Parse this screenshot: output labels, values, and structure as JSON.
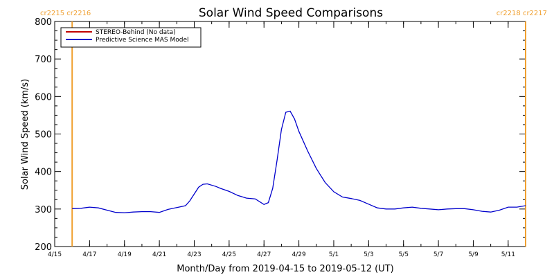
{
  "chart_data": {
    "type": "line",
    "title": "Solar Wind Speed Comparisons",
    "xlabel": "Month/Day from 2019-04-15 to 2019-05-12 (UT)",
    "ylabel": "Solar Wind Speed (km/s)",
    "xlim": [
      "2019-04-15",
      "2019-05-12"
    ],
    "ylim": [
      200,
      800
    ],
    "y_ticks": [
      200,
      300,
      400,
      500,
      600,
      700,
      800
    ],
    "x_ticks": [
      {
        "date": "2019-04-15",
        "label": "4/15"
      },
      {
        "date": "2019-04-17",
        "label": "4/17"
      },
      {
        "date": "2019-04-19",
        "label": "4/19"
      },
      {
        "date": "2019-04-21",
        "label": "4/21"
      },
      {
        "date": "2019-04-23",
        "label": "4/23"
      },
      {
        "date": "2019-04-25",
        "label": "4/25"
      },
      {
        "date": "2019-04-27",
        "label": "4/27"
      },
      {
        "date": "2019-04-29",
        "label": "4/29"
      },
      {
        "date": "2019-05-01",
        "label": "5/1"
      },
      {
        "date": "2019-05-03",
        "label": "5/3"
      },
      {
        "date": "2019-05-05",
        "label": "5/5"
      },
      {
        "date": "2019-05-07",
        "label": "5/7"
      },
      {
        "date": "2019-05-09",
        "label": "5/9"
      },
      {
        "date": "2019-05-11",
        "label": "5/11"
      }
    ],
    "carrington_markers": [
      {
        "label": "cr2215 cr2216",
        "date": "2019-04-16 00:00",
        "side": "left"
      },
      {
        "label": "cr2218 cr2217",
        "date": "2019-05-12 00:00",
        "side": "right"
      }
    ],
    "marker_color": "#f0a030",
    "legend": {
      "position": "top-left",
      "entries": [
        {
          "label": "STEREO-Behind (No data)",
          "color": "#c00000"
        },
        {
          "label": "Predictive Science MAS Model",
          "color": "#0000cc"
        }
      ]
    },
    "series": [
      {
        "name": "Predictive Science MAS Model",
        "color": "#0000cc",
        "points": [
          [
            "2019-04-16 00:00",
            301
          ],
          [
            "2019-04-16 12:00",
            302
          ],
          [
            "2019-04-17 00:00",
            305
          ],
          [
            "2019-04-17 12:00",
            303
          ],
          [
            "2019-04-18 00:00",
            297
          ],
          [
            "2019-04-18 12:00",
            291
          ],
          [
            "2019-04-19 00:00",
            290
          ],
          [
            "2019-04-19 12:00",
            292
          ],
          [
            "2019-04-20 00:00",
            293
          ],
          [
            "2019-04-20 12:00",
            293
          ],
          [
            "2019-04-21 00:00",
            291
          ],
          [
            "2019-04-21 12:00",
            299
          ],
          [
            "2019-04-22 00:00",
            304
          ],
          [
            "2019-04-22 12:00",
            309
          ],
          [
            "2019-04-22 18:00",
            322
          ],
          [
            "2019-04-23 06:00",
            358
          ],
          [
            "2019-04-23 12:00",
            366
          ],
          [
            "2019-04-23 18:00",
            367
          ],
          [
            "2019-04-24 06:00",
            360
          ],
          [
            "2019-04-24 12:00",
            355
          ],
          [
            "2019-04-25 00:00",
            347
          ],
          [
            "2019-04-25 12:00",
            336
          ],
          [
            "2019-04-26 00:00",
            329
          ],
          [
            "2019-04-26 12:00",
            327
          ],
          [
            "2019-04-27 00:00",
            312
          ],
          [
            "2019-04-27 06:00",
            317
          ],
          [
            "2019-04-27 12:00",
            355
          ],
          [
            "2019-04-27 18:00",
            430
          ],
          [
            "2019-04-28 00:00",
            512
          ],
          [
            "2019-04-28 06:00",
            558
          ],
          [
            "2019-04-28 12:00",
            561
          ],
          [
            "2019-04-28 18:00",
            540
          ],
          [
            "2019-04-29 00:00",
            507
          ],
          [
            "2019-04-29 12:00",
            455
          ],
          [
            "2019-04-30 00:00",
            408
          ],
          [
            "2019-04-30 12:00",
            371
          ],
          [
            "2019-05-01 00:00",
            346
          ],
          [
            "2019-05-01 12:00",
            332
          ],
          [
            "2019-05-02 00:00",
            328
          ],
          [
            "2019-05-02 12:00",
            323
          ],
          [
            "2019-05-03 00:00",
            313
          ],
          [
            "2019-05-03 12:00",
            303
          ],
          [
            "2019-05-04 00:00",
            300
          ],
          [
            "2019-05-04 12:00",
            300
          ],
          [
            "2019-05-05 00:00",
            303
          ],
          [
            "2019-05-05 12:00",
            305
          ],
          [
            "2019-05-06 00:00",
            302
          ],
          [
            "2019-05-06 12:00",
            300
          ],
          [
            "2019-05-07 00:00",
            298
          ],
          [
            "2019-05-07 12:00",
            300
          ],
          [
            "2019-05-08 00:00",
            301
          ],
          [
            "2019-05-08 12:00",
            301
          ],
          [
            "2019-05-09 00:00",
            298
          ],
          [
            "2019-05-09 12:00",
            294
          ],
          [
            "2019-05-10 00:00",
            292
          ],
          [
            "2019-05-10 12:00",
            297
          ],
          [
            "2019-05-11 00:00",
            305
          ],
          [
            "2019-05-11 12:00",
            305
          ],
          [
            "2019-05-12 00:00",
            309
          ]
        ]
      }
    ]
  }
}
